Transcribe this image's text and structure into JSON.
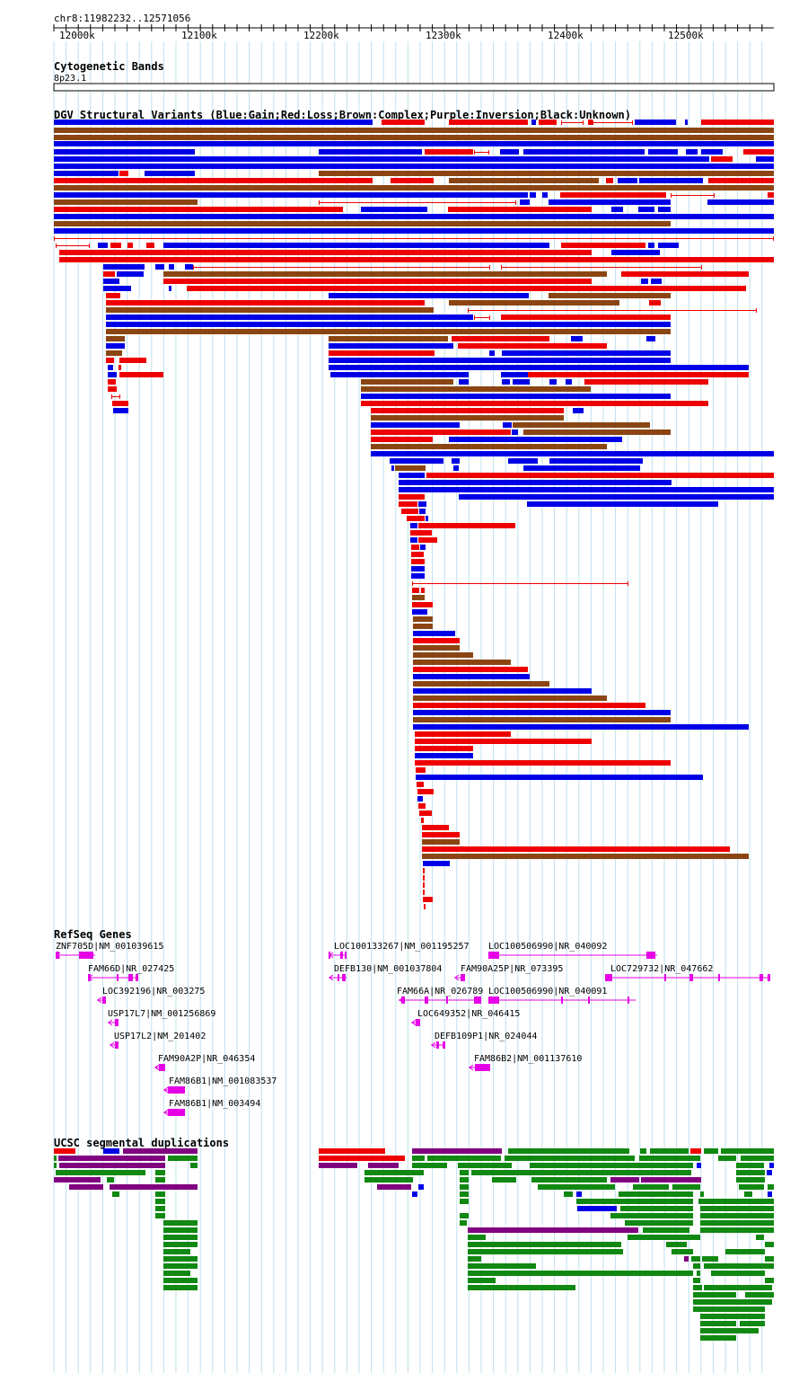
{
  "ruler": {
    "region_label": "chr8:11982232..12571056",
    "ticks": [
      "12000k",
      "12100k",
      "12200k",
      "12300k",
      "12400k",
      "12500k"
    ]
  },
  "cytoband": {
    "title": "Cytogenetic Bands",
    "band": "8p23.1"
  },
  "dgv": {
    "title": "DGV Structural Variants (Blue:Gain;Red:Loss;Brown:Complex;Purple:Inversion;Black:Unknown)",
    "colors": {
      "gain": "#0000e6",
      "loss": "#ee0000",
      "complex": "#8b4513",
      "inversion": "#800080"
    }
  },
  "refseq": {
    "title": "RefSeq Genes",
    "color": "#e600e6",
    "genes": [
      "ZNF705D|NM_001039615",
      "FAM66D|NR_027425",
      "LOC392196|NR_003275",
      "USP17L7|NM_001256869",
      "USP17L2|NM_201402",
      "FAM90A2P|NR_046354",
      "FAM86B1|NM_001083537",
      "FAM86B1|NM_003494",
      "LOC100133267|NM_001195257",
      "DEFB130|NM_001037804",
      "FAM66A|NR_026789",
      "LOC649352|NR_046415",
      "DEFB109P1|NR_024044",
      "LOC100506990|NR_040092",
      "FAM90A25P|NR_073395",
      "LOC100506990|NR_040091",
      "FAM86B2|NM_001137610",
      "LOC729732|NR_047662"
    ]
  },
  "segdups": {
    "title": "UCSC segmental duplications",
    "colors": {
      "high": "#ee0000",
      "mid": "#800080",
      "low": "#118811",
      "blue": "#0000e6"
    }
  }
}
